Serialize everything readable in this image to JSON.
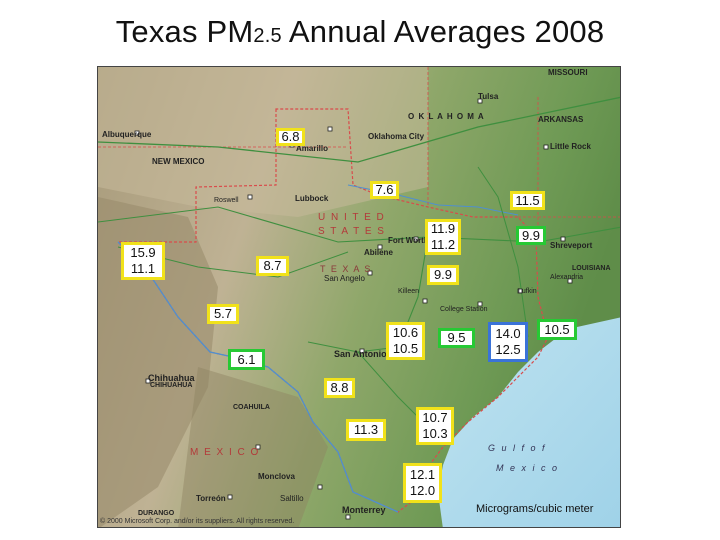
{
  "title": {
    "main_a": "Texas PM",
    "sub": "2.5",
    "main_b": " Annual Averages 2008"
  },
  "units": "Micrograms/cubic meter",
  "copyright": "© 2000 Microsoft Corp. and/or its suppliers. All rights reserved.",
  "map_labels": {
    "missouri": "MISSOURI",
    "oklahoma": "O K L A H O M A",
    "arkansas": "ARKANSAS",
    "new_mexico": "NEW MEXICO",
    "united_states": "U N I T E D",
    "states": "S T A T E S",
    "texas": "T E X A S",
    "louisiana": "LOUISIANA",
    "mexico": "M E X I C O",
    "coahuila": "COAHUILA",
    "chihuahua_state": "CHIHUAHUA",
    "durango": "DURANGO",
    "gulf": "G u l f   o f",
    "gulf_mexico": "M e x i c o",
    "albuquerque": "Albuquerque",
    "amarillo": "Amarillo",
    "lubbock": "Lubbock",
    "oklahoma_city": "Oklahoma City",
    "tulsa": "Tulsa",
    "little_rock": "Little Rock",
    "shreveport": "Shreveport",
    "fort_worth": "Fort Worth",
    "abilene": "Abilene",
    "san_angelo": "San Angelo",
    "san_antonio": "San Antonio",
    "chihuahua": "Chihuahua",
    "monclova": "Monclova",
    "torreon": "Torreón",
    "saltillo": "Saltillo",
    "monterrey": "Monterrey",
    "roswell": "Roswell",
    "alexandria": "Alexandria",
    "killeen": "Killeen",
    "college_station": "College Station",
    "lufkin": "Lufkin"
  },
  "readings": [
    {
      "id": "amarillo",
      "line1": "6.8",
      "line2": "",
      "border": "yellow"
    },
    {
      "id": "lubbock",
      "line1": "7.6",
      "line2": "",
      "border": "yellow"
    },
    {
      "id": "northeast",
      "line1": "11.5",
      "line2": "",
      "border": "yellow"
    },
    {
      "id": "dallas",
      "line1": "11.9",
      "line2": "11.2",
      "border": "yellow"
    },
    {
      "id": "tyler",
      "line1": "9.9",
      "line2": "",
      "border": "green"
    },
    {
      "id": "el-paso",
      "line1": "15.9",
      "line2": "11.1",
      "border": "yellow"
    },
    {
      "id": "midland",
      "line1": "8.7",
      "line2": "",
      "border": "yellow"
    },
    {
      "id": "waco",
      "line1": "9.9",
      "line2": "",
      "border": "yellow"
    },
    {
      "id": "big-bend",
      "line1": "5.7",
      "line2": "",
      "border": "yellow"
    },
    {
      "id": "austin",
      "line1": "10.6",
      "line2": "10.5",
      "border": "yellow"
    },
    {
      "id": "houston-west",
      "line1": "9.5",
      "line2": "",
      "border": "green"
    },
    {
      "id": "houston",
      "line1": "14.0",
      "line2": "12.5",
      "border": "blue"
    },
    {
      "id": "beaumont",
      "line1": "10.5",
      "line2": "",
      "border": "green"
    },
    {
      "id": "del-rio",
      "line1": "6.1",
      "line2": "",
      "border": "green"
    },
    {
      "id": "laredo-north",
      "line1": "8.8",
      "line2": "",
      "border": "yellow"
    },
    {
      "id": "laredo",
      "line1": "11.3",
      "line2": "",
      "border": "yellow"
    },
    {
      "id": "corpus-christi",
      "line1": "10.7",
      "line2": "10.3",
      "border": "yellow"
    },
    {
      "id": "brownsville",
      "line1": "12.1",
      "line2": "12.0",
      "border": "yellow"
    }
  ]
}
